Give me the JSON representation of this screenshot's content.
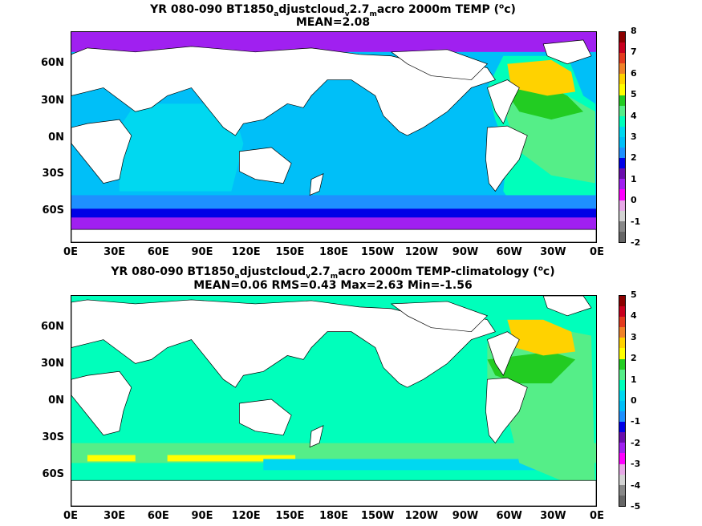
{
  "panel1": {
    "title_line1": "YR 080-090 BT1850adjustcloudv2.7macro 2000m TEMP (°c)",
    "title_line2": "MEAN=2.08",
    "colorbar_ticks": [
      "8",
      "7",
      "6",
      "5",
      "4",
      "3",
      "2",
      "1",
      "0",
      "-1",
      "-2"
    ],
    "colorbar_colors": [
      "#8b0000",
      "#c8001e",
      "#e33b1e",
      "#f08228",
      "#ffd200",
      "#ffff00",
      "#22cc22",
      "#55ee88",
      "#00ffbb",
      "#00d8f0",
      "#00bff8",
      "#1e90ff",
      "#0000e6",
      "#6a0dad",
      "#a020f0",
      "#ff00ff",
      "#e6a8e6",
      "#d3d3d3",
      "#888888",
      "#666666"
    ]
  },
  "panel2": {
    "title_line1": "YR 080-090 BT1850adjustcloudv2.7macro 2000m TEMP-climatology (°c)",
    "title_line2": "MEAN=0.06   RMS=0.43   Max=2.63   Min=-1.56",
    "colorbar_ticks": [
      "5",
      "4",
      "3",
      "2",
      "1",
      "0",
      "-1",
      "-2",
      "-3",
      "-4",
      "-5"
    ],
    "colorbar_colors": [
      "#8b0000",
      "#c8001e",
      "#e33b1e",
      "#f08228",
      "#ffd200",
      "#ffff00",
      "#22cc22",
      "#55ee88",
      "#00ffbb",
      "#00d8f0",
      "#00bff8",
      "#1e90ff",
      "#0000e6",
      "#6a0dad",
      "#a020f0",
      "#ff00ff",
      "#e6a8e6",
      "#d3d3d3",
      "#888888",
      "#666666"
    ]
  },
  "lat_labels": [
    "60N",
    "30N",
    "0N",
    "30S",
    "60S"
  ],
  "lon_labels": [
    "0E",
    "30E",
    "60E",
    "90E",
    "120E",
    "150E",
    "180E",
    "150W",
    "120W",
    "90W",
    "60W",
    "30W",
    "0E"
  ]
}
